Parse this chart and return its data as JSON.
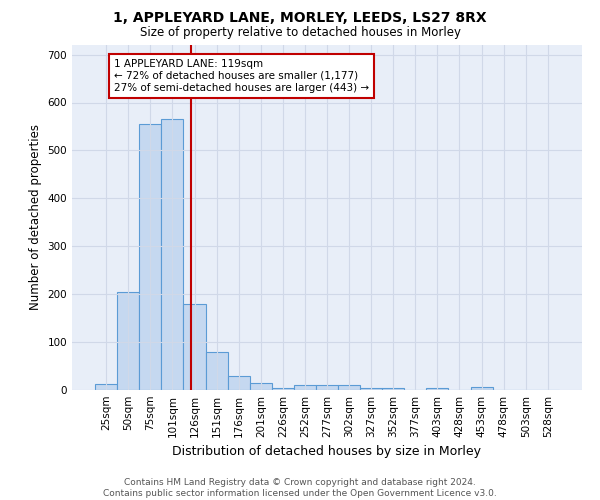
{
  "title1": "1, APPLEYARD LANE, MORLEY, LEEDS, LS27 8RX",
  "title2": "Size of property relative to detached houses in Morley",
  "xlabel": "Distribution of detached houses by size in Morley",
  "ylabel": "Number of detached properties",
  "categories": [
    "25sqm",
    "50sqm",
    "75sqm",
    "101sqm",
    "126sqm",
    "151sqm",
    "176sqm",
    "201sqm",
    "226sqm",
    "252sqm",
    "277sqm",
    "302sqm",
    "327sqm",
    "352sqm",
    "377sqm",
    "403sqm",
    "428sqm",
    "453sqm",
    "478sqm",
    "503sqm",
    "528sqm"
  ],
  "values": [
    12,
    205,
    555,
    565,
    180,
    80,
    30,
    14,
    5,
    10,
    10,
    10,
    5,
    5,
    0,
    5,
    0,
    6,
    0,
    0,
    0
  ],
  "bar_color": "#c5d8f0",
  "bar_edge_color": "#5b9bd5",
  "bar_edge_width": 0.8,
  "red_line_color": "#c00000",
  "annotation_line1": "1 APPLEYARD LANE: 119sqm",
  "annotation_line2": "← 72% of detached houses are smaller (1,177)",
  "annotation_line3": "27% of semi-detached houses are larger (443) →",
  "annotation_box_color": "white",
  "annotation_box_edge_color": "#c00000",
  "annotation_fontsize": 7.5,
  "ylim": [
    0,
    720
  ],
  "yticks": [
    0,
    100,
    200,
    300,
    400,
    500,
    600,
    700
  ],
  "grid_color": "#d0d8e8",
  "background_color": "#e8eef8",
  "footer": "Contains HM Land Registry data © Crown copyright and database right 2024.\nContains public sector information licensed under the Open Government Licence v3.0.",
  "footer_fontsize": 6.5,
  "title1_fontsize": 10,
  "title2_fontsize": 8.5
}
